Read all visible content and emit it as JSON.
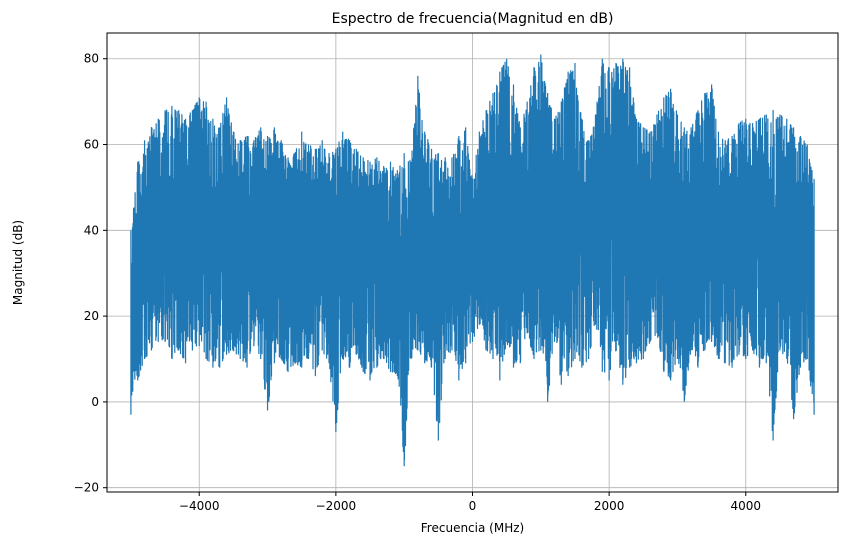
{
  "chart_data": {
    "type": "line",
    "title": "Espectro de frecuencia(Magnitud en dB)",
    "xlabel": "Frecuencia (MHz)",
    "ylabel": "Magnitud (dB)",
    "xlim": [
      -5350,
      5350
    ],
    "ylim": [
      -21,
      86
    ],
    "xticks": [
      -4000,
      -2000,
      0,
      2000,
      4000
    ],
    "xtick_labels": [
      "−4000",
      "−2000",
      "0",
      "2000",
      "4000"
    ],
    "yticks": [
      -20,
      0,
      20,
      40,
      60,
      80
    ],
    "ytick_labels": [
      "−20",
      "0",
      "20",
      "40",
      "60",
      "80"
    ],
    "grid": true,
    "color": "#1f77b4",
    "series": [
      {
        "x": [
          -5000,
          -4900,
          -4800,
          -4700,
          -4600,
          -4500,
          -4400,
          -4300,
          -4200,
          -4100,
          -4000,
          -3900,
          -3800,
          -3700,
          -3600,
          -3500,
          -3400,
          -3300,
          -3200,
          -3100,
          -3000,
          -2900,
          -2800,
          -2700,
          -2600,
          -2500,
          -2400,
          -2300,
          -2200,
          -2100,
          -2000,
          -1900,
          -1800,
          -1700,
          -1600,
          -1500,
          -1400,
          -1300,
          -1200,
          -1100,
          -1000,
          -900,
          -800,
          -700,
          -600,
          -500,
          -400,
          -300,
          -200,
          -100,
          0,
          100,
          200,
          300,
          400,
          500,
          600,
          700,
          800,
          900,
          1000,
          1100,
          1200,
          1300,
          1400,
          1500,
          1600,
          1700,
          1800,
          1900,
          2000,
          2100,
          2200,
          2300,
          2400,
          2500,
          2600,
          2700,
          2800,
          2900,
          3000,
          3100,
          3200,
          3300,
          3400,
          3500,
          3600,
          3700,
          3800,
          3900,
          4000,
          4100,
          4200,
          4300,
          4400,
          4500,
          4600,
          4700,
          4800,
          4900,
          5000
        ],
        "max": [
          40,
          56,
          61,
          64,
          66,
          68,
          69,
          68,
          66,
          68,
          71,
          70,
          66,
          64,
          71,
          63,
          61,
          62,
          61,
          64,
          62,
          64,
          61,
          57,
          58,
          63,
          60,
          59,
          61,
          58,
          59,
          63,
          61,
          59,
          57,
          56,
          57,
          55,
          56,
          54,
          58,
          56,
          76,
          63,
          59,
          58,
          57,
          57,
          62,
          64,
          52,
          63,
          68,
          72,
          77,
          80,
          74,
          64,
          70,
          78,
          81,
          72,
          66,
          70,
          77,
          79,
          66,
          61,
          67,
          80,
          78,
          79,
          80,
          78,
          66,
          64,
          63,
          67,
          71,
          73,
          67,
          64,
          64,
          68,
          72,
          74,
          63,
          61,
          62,
          65,
          66,
          65,
          66,
          67,
          68,
          67,
          66,
          64,
          62,
          60,
          52
        ],
        "min": [
          -3,
          5,
          10,
          12,
          14,
          14,
          10,
          12,
          9,
          12,
          13,
          10,
          8,
          8,
          11,
          12,
          10,
          8,
          13,
          10,
          -2,
          9,
          10,
          7,
          9,
          8,
          10,
          6,
          12,
          9,
          -7,
          10,
          8,
          11,
          7,
          5,
          8,
          10,
          7,
          6,
          -15,
          10,
          12,
          9,
          8,
          -9,
          10,
          12,
          5,
          9,
          14,
          18,
          12,
          10,
          5,
          14,
          8,
          9,
          16,
          10,
          12,
          0,
          14,
          4,
          6,
          10,
          8,
          10,
          18,
          7,
          5,
          12,
          4,
          8,
          9,
          10,
          14,
          16,
          7,
          5,
          10,
          0,
          12,
          8,
          12,
          14,
          10,
          9,
          8,
          11,
          10,
          12,
          8,
          9,
          -9,
          12,
          10,
          -4,
          8,
          10,
          -3
        ]
      }
    ]
  }
}
